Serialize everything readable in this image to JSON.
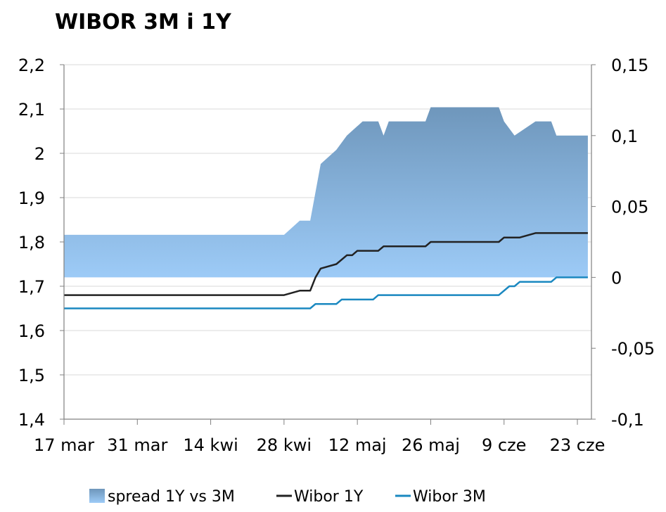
{
  "chart_data": {
    "type": "line",
    "title": "WIBOR 3M i 1Y",
    "x_ticks": [
      "17 mar",
      "31 mar",
      "14 kwi",
      "28 kwi",
      "12 maj",
      "26 maj",
      "9 cze",
      "23 cze"
    ],
    "y_left_ticks": [
      "2,2",
      "2,1",
      "2",
      "1,9",
      "1,8",
      "1,7",
      "1,6",
      "1,5",
      "1,4"
    ],
    "y_right_ticks": [
      "0,15",
      "0,1",
      "0,05",
      "0",
      "-0,05",
      "-0,1"
    ],
    "y_left_range": [
      1.4,
      2.2
    ],
    "y_right_range": [
      -0.1,
      0.15
    ],
    "grid": "horizontal",
    "legend_position": "bottom",
    "colors": {
      "spread_light": "#9dcbf7",
      "spread_dark": "#6e96bb",
      "wibor_1y": "#222222",
      "wibor_3m": "#1a88c0",
      "grid": "#d9d9d9",
      "axis": "#808080"
    },
    "series": [
      {
        "name": "spread 1Y vs 3M",
        "kind": "area",
        "axis": "right",
        "points": [
          [
            "17 mar",
            0.03
          ],
          [
            "28 kwi",
            0.03
          ],
          [
            "1 maj",
            0.04
          ],
          [
            "3 maj",
            0.04
          ],
          [
            "5 maj",
            0.08
          ],
          [
            "8 maj",
            0.09
          ],
          [
            "10 maj",
            0.1
          ],
          [
            "13 maj",
            0.11
          ],
          [
            "16 maj",
            0.11
          ],
          [
            "17 maj",
            0.1
          ],
          [
            "18 maj",
            0.11
          ],
          [
            "25 maj",
            0.11
          ],
          [
            "26 maj",
            0.12
          ],
          [
            "8 cze",
            0.12
          ],
          [
            "9 cze",
            0.11
          ],
          [
            "11 cze",
            0.1
          ],
          [
            "15 cze",
            0.11
          ],
          [
            "18 cze",
            0.11
          ],
          [
            "19 cze",
            0.1
          ],
          [
            "25 cze",
            0.1
          ]
        ]
      },
      {
        "name": "Wibor 1Y",
        "kind": "line",
        "axis": "left",
        "points": [
          [
            "17 mar",
            1.68
          ],
          [
            "28 kwi",
            1.68
          ],
          [
            "1 maj",
            1.69
          ],
          [
            "3 maj",
            1.69
          ],
          [
            "4 maj",
            1.72
          ],
          [
            "5 maj",
            1.74
          ],
          [
            "8 maj",
            1.75
          ],
          [
            "10 maj",
            1.77
          ],
          [
            "11 maj",
            1.77
          ],
          [
            "12 maj",
            1.78
          ],
          [
            "16 maj",
            1.78
          ],
          [
            "17 maj",
            1.79
          ],
          [
            "25 maj",
            1.79
          ],
          [
            "26 maj",
            1.8
          ],
          [
            "8 cze",
            1.8
          ],
          [
            "9 cze",
            1.81
          ],
          [
            "12 cze",
            1.81
          ],
          [
            "15 cze",
            1.82
          ],
          [
            "25 cze",
            1.82
          ]
        ]
      },
      {
        "name": "Wibor 3M",
        "kind": "line",
        "axis": "left",
        "points": [
          [
            "17 mar",
            1.65
          ],
          [
            "3 maj",
            1.65
          ],
          [
            "4 maj",
            1.66
          ],
          [
            "8 maj",
            1.66
          ],
          [
            "9 maj",
            1.67
          ],
          [
            "15 maj",
            1.67
          ],
          [
            "16 maj",
            1.68
          ],
          [
            "8 cze",
            1.68
          ],
          [
            "10 cze",
            1.7
          ],
          [
            "11 cze",
            1.7
          ],
          [
            "12 cze",
            1.71
          ],
          [
            "18 cze",
            1.71
          ],
          [
            "19 cze",
            1.72
          ],
          [
            "25 cze",
            1.72
          ]
        ]
      }
    ]
  }
}
